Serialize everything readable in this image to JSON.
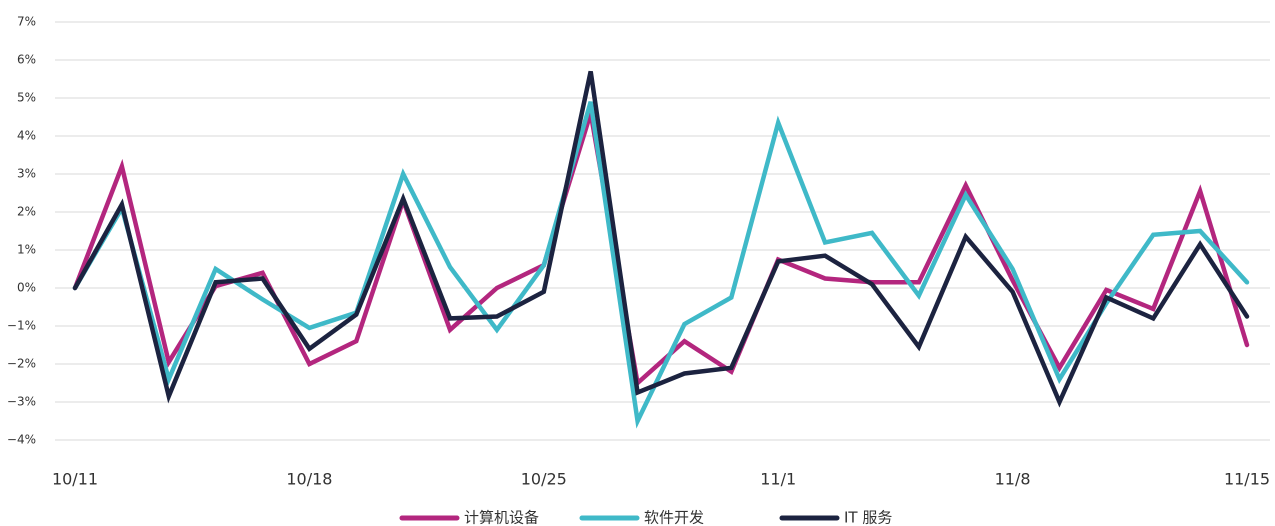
{
  "chart_data": {
    "type": "line",
    "categories": [
      "10/11",
      null,
      null,
      null,
      null,
      "10/18",
      null,
      null,
      null,
      null,
      "10/25",
      null,
      null,
      null,
      null,
      "11/1",
      null,
      null,
      null,
      null,
      "11/8",
      null,
      null,
      null,
      null,
      "11/15"
    ],
    "series": [
      {
        "name": "计算机设备",
        "color": "#b3267e",
        "values": [
          0,
          3.2,
          -1.95,
          0.05,
          0.4,
          -2.0,
          -1.4,
          2.3,
          -1.1,
          0.0,
          0.6,
          4.6,
          -2.5,
          -1.4,
          -2.2,
          0.75,
          0.25,
          0.15,
          0.15,
          2.7,
          0.2,
          -2.1,
          -0.05,
          -0.55,
          2.55,
          -1.5
        ]
      },
      {
        "name": "软件开发",
        "color": "#3fb9c8",
        "values": [
          0,
          2.1,
          -2.4,
          0.5,
          -0.3,
          -1.05,
          -0.65,
          3.0,
          0.55,
          -1.1,
          0.6,
          4.9,
          -3.5,
          -0.95,
          -0.25,
          4.35,
          1.2,
          1.45,
          -0.2,
          2.45,
          0.5,
          -2.4,
          -0.4,
          1.4,
          1.5,
          0.15
        ]
      },
      {
        "name": "IT 服务",
        "color": "#1c2340",
        "values": [
          0,
          2.2,
          -2.85,
          0.15,
          0.25,
          -1.6,
          -0.7,
          2.35,
          -0.8,
          -0.75,
          -0.1,
          5.7,
          -2.75,
          -2.25,
          -2.1,
          0.7,
          0.85,
          0.1,
          -1.55,
          1.35,
          -0.1,
          -3.0,
          -0.25,
          -0.8,
          1.15,
          -0.75
        ]
      }
    ],
    "ylim": [
      -4,
      7
    ],
    "yticks": [
      {
        "value": -4,
        "label": "−4%"
      },
      {
        "value": -3,
        "label": "−3%"
      },
      {
        "value": -2,
        "label": "−2%"
      },
      {
        "value": -1,
        "label": "−1%"
      },
      {
        "value": 0,
        "label": "0%"
      },
      {
        "value": 1,
        "label": "1%"
      },
      {
        "value": 2,
        "label": "2%"
      },
      {
        "value": 3,
        "label": "3%"
      },
      {
        "value": 4,
        "label": "4%"
      },
      {
        "value": 5,
        "label": "5%"
      },
      {
        "value": 6,
        "label": "6%"
      },
      {
        "value": 7,
        "label": "7%"
      }
    ],
    "grid": true,
    "legend": "bottom"
  }
}
